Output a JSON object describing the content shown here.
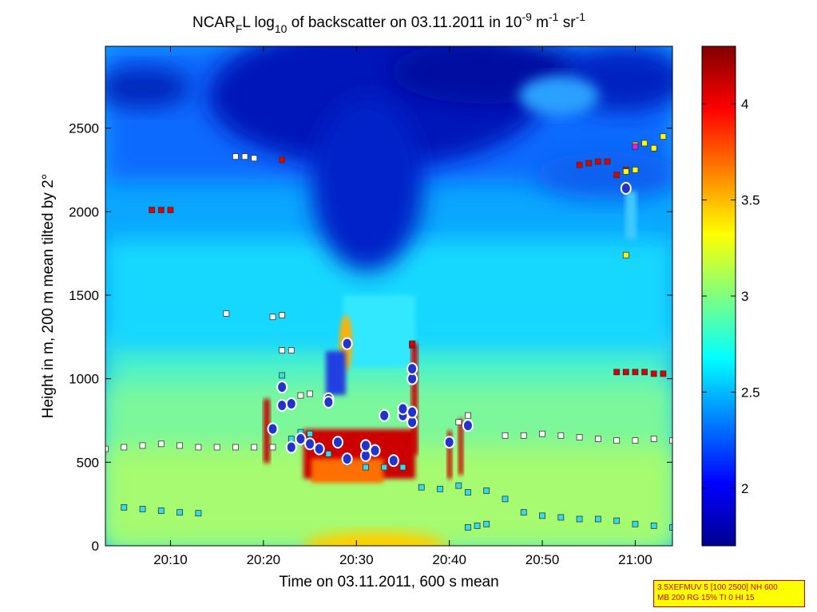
{
  "title": {
    "prefix": "NCAR",
    "sub1": "F",
    "mid": "L log",
    "sub2": "10",
    "after": " of backscatter on 03.11.2011 in 10",
    "sup1": "-9",
    "unit1": " m",
    "sup2": "-1",
    "unit2": " sr",
    "sup3": "-1"
  },
  "xlabel": "Time on 03.11.2011, 600 s mean",
  "ylabel": "Height in m, 200 m mean tilted by 2°",
  "info_box": {
    "line1": "3.5XEFMUV 5 [100 2500] NH 600",
    "line2": "MB 200 RG 15% TI 0 HI 15"
  },
  "colors": {
    "colormap": "jet",
    "marker_red": "#dd0000",
    "marker_white": "#ffffff",
    "marker_cyan": "#33ddee",
    "marker_yellow": "#ffff00",
    "marker_magenta": "#dd22dd",
    "circle_fill": "#2233cc",
    "circle_edge": "#ffffff"
  },
  "chart_data": {
    "type": "heatmap",
    "x_units": "time (HH:MM)",
    "y_units": "height (m)",
    "xlim": [
      "20:03",
      "21:04"
    ],
    "ylim": [
      0,
      2990
    ],
    "x_ticks": [
      "20:10",
      "20:20",
      "20:30",
      "20:40",
      "20:50",
      "21:00"
    ],
    "y_ticks": [
      0,
      500,
      1000,
      1500,
      2000,
      2500
    ],
    "colorbar": {
      "colormap": "jet",
      "range": [
        1.7,
        4.3
      ],
      "ticks": [
        2,
        2.5,
        3,
        3.5,
        4
      ]
    },
    "red_layer_markers": [
      [
        "20:08",
        2010
      ],
      [
        "20:09",
        2010
      ],
      [
        "20:10",
        2010
      ],
      [
        "20:22",
        2310
      ],
      [
        "20:36",
        1200
      ],
      [
        "20:36",
        1210
      ],
      [
        "20:54",
        2280
      ],
      [
        "20:55",
        2290
      ],
      [
        "20:56",
        2300
      ],
      [
        "20:57",
        2300
      ],
      [
        "20:58",
        2220
      ],
      [
        "20:59",
        2250
      ],
      [
        "20:58",
        1040
      ],
      [
        "20:59",
        1040
      ],
      [
        "21:00",
        1040
      ],
      [
        "21:01",
        1040
      ],
      [
        "21:02",
        1030
      ],
      [
        "21:03",
        1030
      ]
    ],
    "white_layer_markers": [
      [
        "20:03",
        580
      ],
      [
        "20:05",
        590
      ],
      [
        "20:07",
        600
      ],
      [
        "20:09",
        610
      ],
      [
        "20:11",
        600
      ],
      [
        "20:13",
        590
      ],
      [
        "20:15",
        590
      ],
      [
        "20:17",
        590
      ],
      [
        "20:19",
        590
      ],
      [
        "20:21",
        590
      ],
      [
        "20:16",
        1390
      ],
      [
        "20:17",
        2330
      ],
      [
        "20:18",
        2330
      ],
      [
        "20:19",
        2320
      ],
      [
        "20:21",
        1370
      ],
      [
        "20:22",
        1380
      ],
      [
        "20:22",
        1170
      ],
      [
        "20:23",
        1170
      ],
      [
        "20:24",
        900
      ],
      [
        "20:25",
        910
      ],
      [
        "20:41",
        740
      ],
      [
        "20:42",
        780
      ],
      [
        "20:46",
        660
      ],
      [
        "20:48",
        660
      ],
      [
        "20:50",
        670
      ],
      [
        "20:52",
        660
      ],
      [
        "20:54",
        650
      ],
      [
        "20:56",
        640
      ],
      [
        "20:58",
        630
      ],
      [
        "21:00",
        630
      ],
      [
        "21:02",
        640
      ],
      [
        "21:04",
        630
      ]
    ],
    "cyan_layer_markers": [
      [
        "20:05",
        230
      ],
      [
        "20:07",
        220
      ],
      [
        "20:09",
        210
      ],
      [
        "20:11",
        200
      ],
      [
        "20:13",
        195
      ],
      [
        "20:22",
        1020
      ],
      [
        "20:23",
        640
      ],
      [
        "20:24",
        680
      ],
      [
        "20:25",
        670
      ],
      [
        "20:27",
        550
      ],
      [
        "20:29",
        500
      ],
      [
        "20:31",
        470
      ],
      [
        "20:33",
        470
      ],
      [
        "20:35",
        470
      ],
      [
        "20:37",
        350
      ],
      [
        "20:39",
        340
      ],
      [
        "20:41",
        360
      ],
      [
        "20:42",
        320
      ],
      [
        "20:44",
        330
      ],
      [
        "20:46",
        280
      ],
      [
        "20:48",
        200
      ],
      [
        "20:50",
        180
      ],
      [
        "20:52",
        170
      ],
      [
        "20:54",
        160
      ],
      [
        "20:56",
        160
      ],
      [
        "20:58",
        150
      ],
      [
        "21:00",
        130
      ],
      [
        "21:02",
        120
      ],
      [
        "21:04",
        110
      ],
      [
        "20:42",
        110
      ],
      [
        "20:43",
        120
      ],
      [
        "20:44",
        130
      ]
    ],
    "yellow_layer_markers": [
      [
        "20:59",
        1740
      ],
      [
        "20:59",
        2240
      ],
      [
        "21:00",
        2250
      ],
      [
        "21:00",
        2400
      ],
      [
        "21:01",
        2410
      ],
      [
        "21:02",
        2380
      ],
      [
        "21:03",
        2450
      ]
    ],
    "magenta_layer_markers": [
      [
        "21:00",
        2390
      ]
    ],
    "circle_markers": [
      [
        "20:21",
        700
      ],
      [
        "20:22",
        840
      ],
      [
        "20:22",
        950
      ],
      [
        "20:23",
        850
      ],
      [
        "20:23",
        590
      ],
      [
        "20:24",
        640
      ],
      [
        "20:25",
        610
      ],
      [
        "20:26",
        580
      ],
      [
        "20:27",
        880
      ],
      [
        "20:27",
        860
      ],
      [
        "20:28",
        620
      ],
      [
        "20:29",
        520
      ],
      [
        "20:29",
        1210
      ],
      [
        "20:31",
        540
      ],
      [
        "20:31",
        600
      ],
      [
        "20:32",
        570
      ],
      [
        "20:33",
        780
      ],
      [
        "20:34",
        510
      ],
      [
        "20:35",
        780
      ],
      [
        "20:35",
        820
      ],
      [
        "20:36",
        740
      ],
      [
        "20:36",
        1000
      ],
      [
        "20:36",
        1060
      ],
      [
        "20:36",
        800
      ],
      [
        "20:40",
        620
      ],
      [
        "20:42",
        720
      ],
      [
        "20:59",
        2140
      ]
    ]
  }
}
